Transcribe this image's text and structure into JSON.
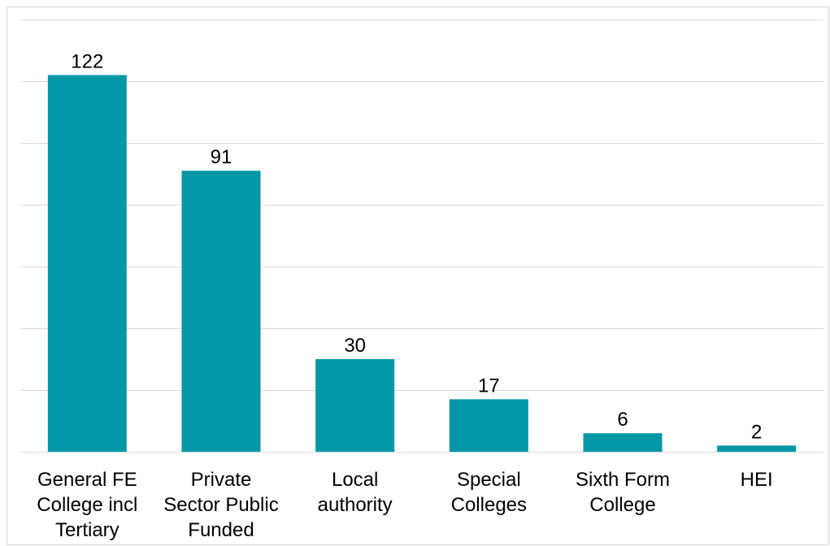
{
  "chart_data": {
    "type": "bar",
    "categories": [
      [
        "General FE",
        "College incl",
        "Tertiary"
      ],
      [
        "Private",
        "Sector Public",
        "Funded"
      ],
      [
        "Local",
        "authority"
      ],
      [
        "Special",
        "Colleges"
      ],
      [
        "Sixth Form",
        "College"
      ],
      [
        "HEI"
      ]
    ],
    "values": [
      122,
      91,
      30,
      17,
      6,
      2
    ],
    "title": "",
    "xlabel": "",
    "ylabel": "",
    "ylim": [
      0,
      140
    ],
    "grid": true,
    "bar_color": "#0097A7"
  }
}
